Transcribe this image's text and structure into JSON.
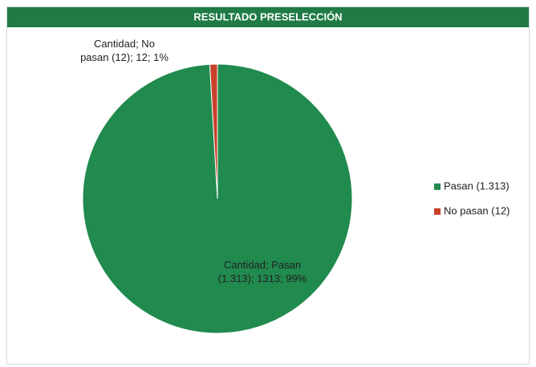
{
  "chart_data": {
    "type": "pie",
    "title": "RESULTADO PRESELECCIÓN",
    "series_name": "Cantidad",
    "categories": [
      "Pasan (1.313)",
      "No pasan (12)"
    ],
    "values": [
      1313,
      12
    ],
    "value_labels": [
      "Cantidad; Pasan (1.313); 1313; 99%",
      "Cantidad; No pasan (12); 12; 1%"
    ],
    "colors": [
      "#218a4f",
      "#c8412a"
    ],
    "legend": "right"
  }
}
